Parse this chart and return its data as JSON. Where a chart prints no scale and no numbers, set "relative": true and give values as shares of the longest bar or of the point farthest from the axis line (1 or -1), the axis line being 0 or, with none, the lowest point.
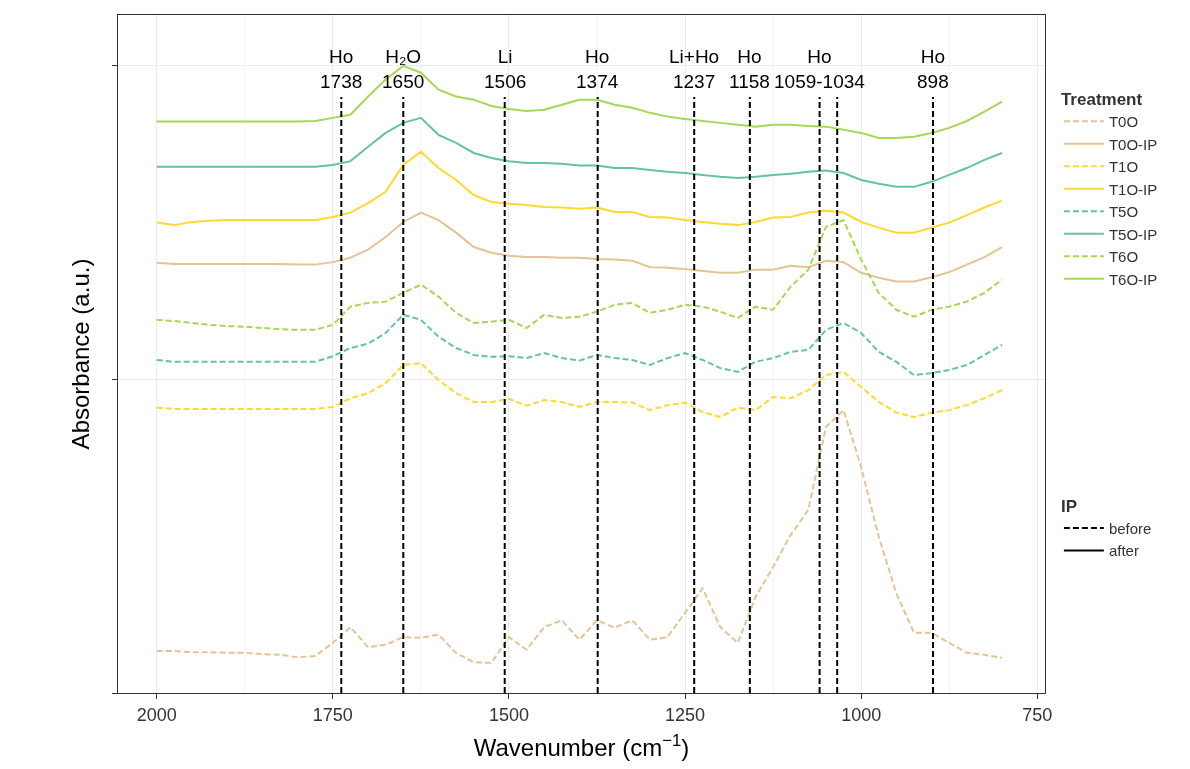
{
  "chart_data": {
    "type": "line",
    "relative": true,
    "xlabel": "Wavenumber (cm$^{−1}$)",
    "ylabel": "Absorbance (a.u.)",
    "legend_title": "Treatment",
    "annotations": [
      "IP"
    ],
    "xlim": [
      2055,
      739
    ],
    "xticks": [
      2000,
      1750,
      1500,
      1250,
      1000,
      750
    ],
    "grid": true,
    "legend": "right",
    "x": [
      2000,
      1975,
      1950,
      1925,
      1900,
      1875,
      1850,
      1825,
      1800,
      1775,
      1750,
      1725,
      1700,
      1675,
      1650,
      1625,
      1600,
      1575,
      1550,
      1525,
      1500,
      1475,
      1450,
      1425,
      1400,
      1375,
      1350,
      1325,
      1300,
      1275,
      1250,
      1225,
      1200,
      1175,
      1150,
      1125,
      1100,
      1075,
      1050,
      1025,
      1000,
      975,
      950,
      925,
      900,
      875,
      850,
      825,
      800
    ],
    "series": [
      {
        "name": "T0O",
        "color": "#e5c494",
        "line_style": "dashed",
        "values": [
          0.067,
          0.067,
          0.065,
          0.065,
          0.064,
          0.064,
          0.062,
          0.061,
          0.057,
          0.059,
          0.08,
          0.105,
          0.073,
          0.077,
          0.089,
          0.088,
          0.093,
          0.064,
          0.049,
          0.048,
          0.089,
          0.069,
          0.105,
          0.116,
          0.085,
          0.116,
          0.104,
          0.116,
          0.085,
          0.089,
          0.128,
          0.167,
          0.105,
          0.08,
          0.153,
          0.201,
          0.252,
          0.292,
          0.424,
          0.451,
          0.36,
          0.249,
          0.159,
          0.096,
          0.096,
          0.08,
          0.064,
          0.061,
          0.056
        ]
      },
      {
        "name": "T0O-IP",
        "color": "#e5c494",
        "line_style": "solid",
        "values": [
          0.686,
          0.684,
          0.684,
          0.684,
          0.684,
          0.684,
          0.684,
          0.684,
          0.683,
          0.683,
          0.687,
          0.694,
          0.707,
          0.727,
          0.751,
          0.766,
          0.754,
          0.734,
          0.711,
          0.702,
          0.697,
          0.695,
          0.695,
          0.694,
          0.694,
          0.692,
          0.691,
          0.689,
          0.679,
          0.678,
          0.676,
          0.673,
          0.67,
          0.67,
          0.675,
          0.675,
          0.681,
          0.679,
          0.689,
          0.687,
          0.67,
          0.662,
          0.656,
          0.656,
          0.663,
          0.671,
          0.683,
          0.695,
          0.711
        ]
      },
      {
        "name": "T1O",
        "color": "#ffd92f",
        "line_style": "dashed",
        "values": [
          0.455,
          0.453,
          0.453,
          0.453,
          0.453,
          0.453,
          0.453,
          0.453,
          0.453,
          0.453,
          0.456,
          0.47,
          0.478,
          0.494,
          0.523,
          0.526,
          0.499,
          0.478,
          0.464,
          0.464,
          0.469,
          0.458,
          0.467,
          0.464,
          0.456,
          0.464,
          0.464,
          0.463,
          0.451,
          0.459,
          0.463,
          0.448,
          0.44,
          0.455,
          0.451,
          0.472,
          0.47,
          0.483,
          0.507,
          0.512,
          0.488,
          0.464,
          0.447,
          0.44,
          0.447,
          0.451,
          0.459,
          0.47,
          0.483
        ]
      },
      {
        "name": "T1O-IP",
        "color": "#ffd92f",
        "line_style": "solid",
        "values": [
          0.75,
          0.746,
          0.751,
          0.753,
          0.754,
          0.754,
          0.754,
          0.754,
          0.754,
          0.754,
          0.759,
          0.766,
          0.781,
          0.799,
          0.842,
          0.863,
          0.837,
          0.818,
          0.794,
          0.783,
          0.78,
          0.778,
          0.775,
          0.774,
          0.772,
          0.774,
          0.767,
          0.767,
          0.759,
          0.758,
          0.754,
          0.751,
          0.748,
          0.746,
          0.751,
          0.758,
          0.759,
          0.766,
          0.769,
          0.766,
          0.751,
          0.742,
          0.734,
          0.734,
          0.742,
          0.75,
          0.762,
          0.774,
          0.785
        ]
      },
      {
        "name": "T5O",
        "color": "#66c2a5",
        "line_style": "dashed",
        "values": [
          0.531,
          0.528,
          0.528,
          0.528,
          0.528,
          0.528,
          0.528,
          0.528,
          0.528,
          0.528,
          0.537,
          0.55,
          0.557,
          0.574,
          0.603,
          0.595,
          0.568,
          0.55,
          0.539,
          0.536,
          0.537,
          0.534,
          0.542,
          0.534,
          0.53,
          0.539,
          0.534,
          0.531,
          0.523,
          0.534,
          0.542,
          0.531,
          0.518,
          0.512,
          0.528,
          0.534,
          0.544,
          0.547,
          0.579,
          0.59,
          0.574,
          0.544,
          0.528,
          0.507,
          0.51,
          0.515,
          0.523,
          0.539,
          0.555
        ]
      },
      {
        "name": "T5O-IP",
        "color": "#66c2a5",
        "line_style": "solid",
        "values": [
          0.839,
          0.839,
          0.839,
          0.839,
          0.839,
          0.839,
          0.839,
          0.839,
          0.839,
          0.839,
          0.842,
          0.848,
          0.871,
          0.893,
          0.909,
          0.917,
          0.89,
          0.877,
          0.861,
          0.853,
          0.848,
          0.845,
          0.845,
          0.844,
          0.841,
          0.841,
          0.837,
          0.837,
          0.834,
          0.831,
          0.829,
          0.826,
          0.823,
          0.821,
          0.823,
          0.826,
          0.828,
          0.831,
          0.833,
          0.829,
          0.818,
          0.812,
          0.807,
          0.807,
          0.815,
          0.826,
          0.837,
          0.85,
          0.861
        ]
      },
      {
        "name": "T6O",
        "color": "#a6d854",
        "line_style": "dashed",
        "values": [
          0.595,
          0.593,
          0.59,
          0.587,
          0.585,
          0.584,
          0.582,
          0.58,
          0.579,
          0.579,
          0.587,
          0.616,
          0.622,
          0.624,
          0.638,
          0.651,
          0.632,
          0.606,
          0.59,
          0.592,
          0.595,
          0.582,
          0.603,
          0.598,
          0.6,
          0.608,
          0.619,
          0.622,
          0.606,
          0.611,
          0.619,
          0.616,
          0.608,
          0.598,
          0.616,
          0.611,
          0.648,
          0.675,
          0.743,
          0.754,
          0.691,
          0.638,
          0.611,
          0.6,
          0.611,
          0.616,
          0.624,
          0.638,
          0.659
        ]
      },
      {
        "name": "T6O-IP",
        "color": "#a6d854",
        "line_style": "solid",
        "values": [
          0.911,
          0.911,
          0.911,
          0.911,
          0.911,
          0.911,
          0.911,
          0.911,
          0.911,
          0.912,
          0.917,
          0.922,
          0.951,
          0.978,
          1.0,
          0.989,
          0.962,
          0.951,
          0.946,
          0.936,
          0.931,
          0.928,
          0.93,
          0.938,
          0.946,
          0.946,
          0.938,
          0.933,
          0.925,
          0.919,
          0.915,
          0.912,
          0.909,
          0.906,
          0.903,
          0.906,
          0.906,
          0.904,
          0.903,
          0.898,
          0.893,
          0.885,
          0.885,
          0.887,
          0.893,
          0.901,
          0.912,
          0.927,
          0.943
        ]
      },
      {
        "name": "before",
        "color": "#000000",
        "line_style": "dashed",
        "values": [
          null,
          null,
          null,
          null,
          null,
          null,
          null,
          null,
          null,
          null,
          null,
          null,
          null,
          null,
          null,
          null,
          null,
          null,
          null,
          null,
          null,
          null,
          null,
          null,
          null,
          null,
          null,
          null,
          null,
          null,
          null,
          null,
          null,
          null,
          null,
          null,
          null,
          null,
          null,
          null,
          null,
          null,
          null,
          null,
          null,
          null,
          null,
          null,
          null
        ]
      },
      {
        "name": "after",
        "color": "#000000",
        "line_style": "solid",
        "values": [
          null,
          null,
          null,
          null,
          null,
          null,
          null,
          null,
          null,
          null,
          null,
          null,
          null,
          null,
          null,
          null,
          null,
          null,
          null,
          null,
          null,
          null,
          null,
          null,
          null,
          null,
          null,
          null,
          null,
          null,
          null,
          null,
          null,
          null,
          null,
          null,
          null,
          null,
          null,
          null,
          null,
          null,
          null,
          null,
          null,
          null,
          null,
          null,
          null
        ]
      }
    ],
    "ref_lines": [
      {
        "axis": "x",
        "value": 1738,
        "label": "Ho\n1738",
        "color": "#000000",
        "line_style": "dashed"
      },
      {
        "axis": "x",
        "value": 1650,
        "label": "H₂O\n1650",
        "color": "#000000",
        "line_style": "dashed"
      },
      {
        "axis": "x",
        "value": 1506,
        "label": "Li\n1506",
        "color": "#000000",
        "line_style": "dashed"
      },
      {
        "axis": "x",
        "value": 1374,
        "label": "Ho\n1374",
        "color": "#000000",
        "line_style": "dashed"
      },
      {
        "axis": "x",
        "value": 1237,
        "label": "Li+Ho\n1237",
        "color": "#000000",
        "line_style": "dashed"
      },
      {
        "axis": "x",
        "value": 1158,
        "label": "Ho\n1158",
        "color": "#000000",
        "line_style": "dashed"
      },
      {
        "axis": "x",
        "value": 1059,
        "label": "Ho\n1059-1034",
        "color": "#000000",
        "line_style": "dashed"
      },
      {
        "axis": "x",
        "value": 1034,
        "label": null,
        "color": "#000000",
        "line_style": "dashed"
      },
      {
        "axis": "x",
        "value": 898,
        "label": "Ho\n898",
        "color": "#000000",
        "line_style": "dashed"
      }
    ]
  }
}
